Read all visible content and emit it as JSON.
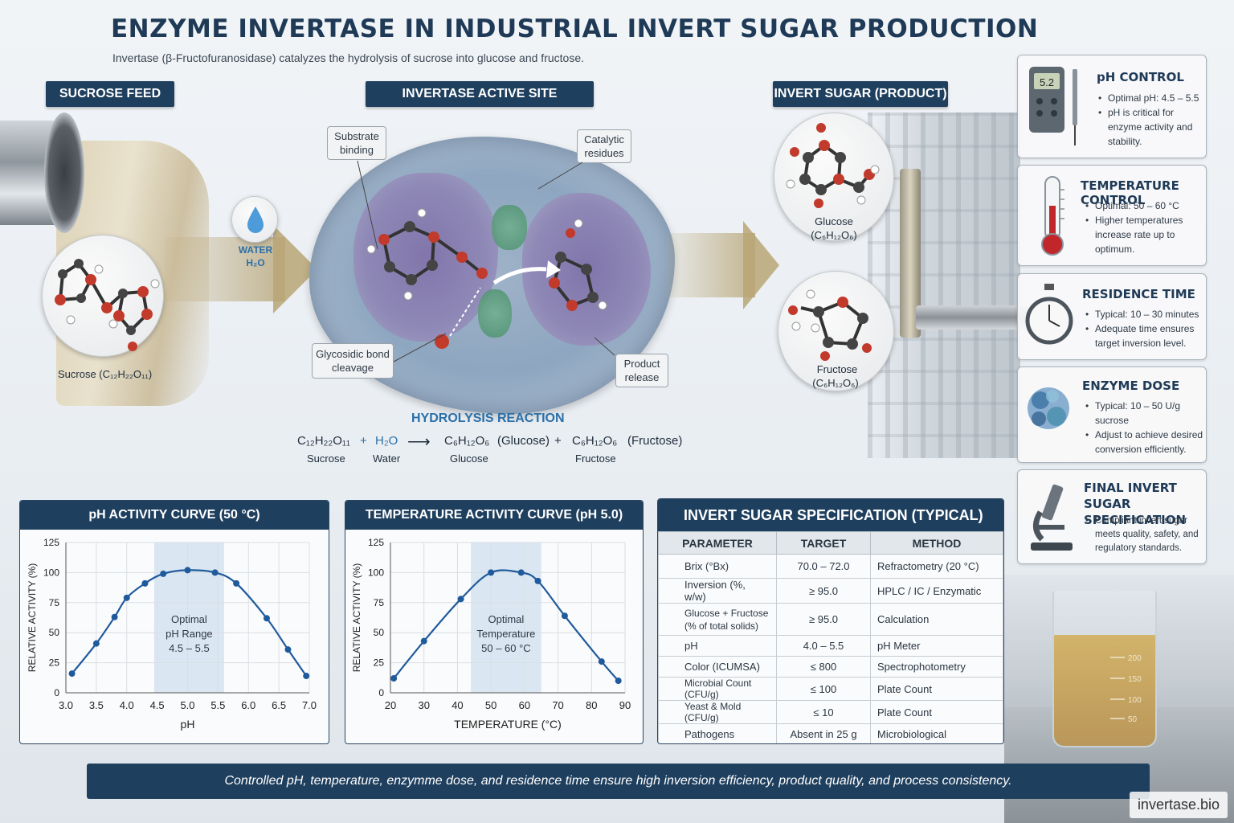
{
  "header": {
    "title": "ENZYME INVERTASE IN INDUSTRIAL INVERT SUGAR PRODUCTION",
    "subtitle": "Invertase (β-Fructofuranosidase) catalyzes the hydrolysis of sucrose into glucose and fructose."
  },
  "sections": {
    "sucrose_feed": "SUCROSE FEED",
    "active_site": "INVERTASE ACTIVE SITE",
    "product": "INVERT SUGAR (PRODUCT)"
  },
  "molecules": {
    "sucrose": "Sucrose (C₁₂H₂₂O₁₁)",
    "water_label": "WATER",
    "water_formula": "H₂O",
    "glucose_name": "Glucose",
    "glucose_formula": "(C₆H₁₂O₆)",
    "fructose_name": "Fructose",
    "fructose_formula": "(C₆H₁₂O₆)"
  },
  "callouts": {
    "substrate": "Substrate binding",
    "catalytic": "Catalytic residues",
    "glycosidic": "Glycosidic bond cleavage",
    "product_release": "Product release"
  },
  "reaction": {
    "heading": "HYDROLYSIS REACTION",
    "sucrose_formula": "C₁₂H₂₂O₁₁",
    "plus1": "+",
    "water_formula": "H₂O",
    "arrow": "⟶",
    "glucose_formula": "C₆H₁₂O₆",
    "glucose_paren": "(Glucose)",
    "plus2": "+",
    "fructose_formula": "C₆H₁₂O₆",
    "fructose_paren": "(Fructose)",
    "sucrose_label": "Sucrose",
    "water_label": "Water",
    "glucose_label": "Glucose",
    "fructose_label": "Fructose"
  },
  "side_panels": [
    {
      "title": "pH CONTROL",
      "icon": "ph-meter-icon",
      "display": "5.2",
      "bullets": [
        "Optimal pH: 4.5 – 5.5",
        "pH is critical for enzyme activity and stability."
      ]
    },
    {
      "title": "TEMPERATURE CONTROL",
      "icon": "thermometer-icon",
      "bullets": [
        "Optimal: 50 – 60 °C",
        "Higher temperatures increase rate up to optimum."
      ]
    },
    {
      "title": "RESIDENCE TIME",
      "icon": "stopwatch-icon",
      "bullets": [
        "Typical: 10 – 30 minutes",
        "Adequate time ensures target inversion level."
      ]
    },
    {
      "title": "ENZYME DOSE",
      "icon": "enzyme-icon",
      "bullets": [
        "Typical: 10 – 50 U/g sucrose",
        "Adjust to achieve desired conversion efficiently."
      ]
    },
    {
      "title": "FINAL INVERT SUGAR SPECIFICATION",
      "icon": "microscope-icon",
      "bullets": [
        "Compliant invert sugar meets quality, safety, and regulatory standards."
      ]
    }
  ],
  "beaker_marks": [
    "200",
    "150",
    "100",
    "50"
  ],
  "chart_data": [
    {
      "type": "line",
      "title": "pH ACTIVITY CURVE (50 °C)",
      "xlabel": "pH",
      "ylabel": "RELATIVE ACTIVITY (%)",
      "xlim": [
        3.0,
        7.0
      ],
      "ylim": [
        0,
        125
      ],
      "xticks": [
        "3.0",
        "3.5",
        "4.0",
        "4.5",
        "5.0",
        "5.5",
        "6.0",
        "6.5",
        "7.0"
      ],
      "yticks": [
        "0",
        "25",
        "50",
        "75",
        "100",
        "125"
      ],
      "x": [
        3.1,
        3.5,
        3.8,
        4.0,
        4.3,
        4.6,
        5.0,
        5.45,
        5.8,
        6.3,
        6.65,
        6.95
      ],
      "y": [
        16,
        41,
        63,
        79,
        91,
        99,
        102,
        100,
        91,
        62,
        36,
        14
      ],
      "band": {
        "from": 4.45,
        "to": 5.6,
        "label": [
          "Optimal",
          "pH Range",
          "4.5 – 5.5"
        ]
      },
      "grid": true
    },
    {
      "type": "line",
      "title": "TEMPERATURE ACTIVITY CURVE (pH 5.0)",
      "xlabel": "TEMPERATURE (°C)",
      "ylabel": "RELATIVE ACTIVITY (%)",
      "xlim": [
        20,
        90
      ],
      "ylim": [
        0,
        125
      ],
      "xticks": [
        "20",
        "30",
        "40",
        "50",
        "60",
        "70",
        "80",
        "90"
      ],
      "yticks": [
        "0",
        "25",
        "50",
        "75",
        "100",
        "125"
      ],
      "x": [
        21,
        30,
        41,
        50,
        59,
        64,
        72,
        83,
        88
      ],
      "y": [
        12,
        43,
        78,
        100,
        100,
        93,
        64,
        26,
        10
      ],
      "band": {
        "from": 44,
        "to": 65,
        "label": [
          "Optimal",
          "Temperature",
          "50 – 60 °C"
        ]
      },
      "grid": true
    }
  ],
  "spec_table": {
    "title": "INVERT SUGAR  SPECIFICATION (TYPICAL)",
    "headers": [
      "PARAMETER",
      "TARGET",
      "METHOD"
    ],
    "rows": [
      [
        "Brix (°Bx)",
        "70.0 – 72.0",
        "Refractometry (20 °C)"
      ],
      [
        "Inversion (%, w/w)",
        "≥ 95.0",
        "HPLC / IC / Enzymatic"
      ],
      [
        "Glucose + Fructose\n(% of total solids)",
        "≥ 95.0",
        "Calculation"
      ],
      [
        "pH",
        "4.0 – 5.5",
        "pH Meter"
      ],
      [
        "Color (ICUMSA)",
        "≤ 800",
        "Spectrophotometry"
      ],
      [
        "Microbial Count (CFU/g)",
        "≤ 100",
        "Plate Count"
      ],
      [
        "Yeast & Mold (CFU/g)",
        "≤ 10",
        "Plate Count"
      ],
      [
        "Pathogens",
        "Absent in 25 g",
        "Microbiological"
      ]
    ]
  },
  "footer": "Controlled pH, temperature,  enzymme  dose,  and  residence time ensure high inversion efficiency,  product quality,  and  process consistency.",
  "watermark": "invertase.bio",
  "colors": {
    "navy": "#1f3f5e",
    "curve": "#1f5a9c",
    "band": "#cfe0f0"
  }
}
